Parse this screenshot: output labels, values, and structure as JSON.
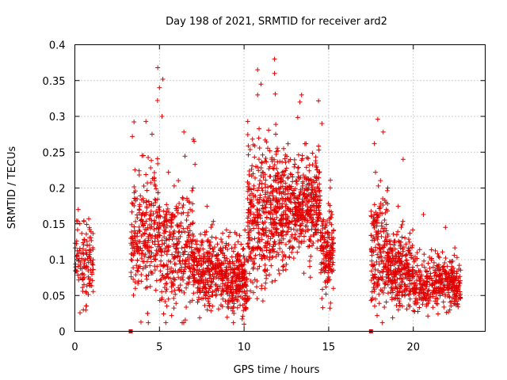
{
  "chart_data": {
    "type": "scatter",
    "title": "Day 198 of 2021, SRMTID for receiver ard2",
    "xlabel": "GPS time / hours",
    "ylabel": "SRMTID / TECUs",
    "xlim": [
      0,
      24.25
    ],
    "ylim": [
      0,
      0.4
    ],
    "xticks": [
      0,
      5,
      10,
      15,
      20
    ],
    "xtick_labels": [
      "0",
      "5",
      "10",
      "15",
      "20"
    ],
    "yticks": [
      0,
      0.05,
      0.1,
      0.15,
      0.2,
      0.25,
      0.3,
      0.35,
      0.4
    ],
    "ytick_labels": [
      "0",
      "0.05",
      "0.1",
      "0.15",
      "0.2",
      "0.25",
      "0.3",
      "0.35",
      "0.4"
    ],
    "grid": true,
    "marker": "+",
    "color": "#e00000",
    "zero_markers_x": [
      3.3,
      17.5
    ],
    "segments": [
      {
        "start": 0.0,
        "end": 1.1,
        "n": 120,
        "median": 0.1,
        "spread": 0.03
      },
      {
        "start": 3.3,
        "end": 5.0,
        "n": 260,
        "median": 0.14,
        "spread": 0.045
      },
      {
        "start": 5.0,
        "end": 7.0,
        "n": 300,
        "median": 0.11,
        "spread": 0.04
      },
      {
        "start": 7.0,
        "end": 9.0,
        "n": 320,
        "median": 0.085,
        "spread": 0.025
      },
      {
        "start": 9.0,
        "end": 10.2,
        "n": 220,
        "median": 0.07,
        "spread": 0.025
      },
      {
        "start": 10.2,
        "end": 11.5,
        "n": 260,
        "median": 0.15,
        "spread": 0.05
      },
      {
        "start": 11.5,
        "end": 13.0,
        "n": 300,
        "median": 0.17,
        "spread": 0.04
      },
      {
        "start": 13.0,
        "end": 14.5,
        "n": 300,
        "median": 0.18,
        "spread": 0.035
      },
      {
        "start": 14.5,
        "end": 15.3,
        "n": 150,
        "median": 0.11,
        "spread": 0.03
      },
      {
        "start": 17.5,
        "end": 18.5,
        "n": 180,
        "median": 0.11,
        "spread": 0.04
      },
      {
        "start": 18.5,
        "end": 20.0,
        "n": 260,
        "median": 0.085,
        "spread": 0.025
      },
      {
        "start": 20.0,
        "end": 22.8,
        "n": 380,
        "median": 0.065,
        "spread": 0.018
      }
    ],
    "notable_points": [
      {
        "x": 4.9,
        "y": 0.368
      },
      {
        "x": 5.0,
        "y": 0.34
      },
      {
        "x": 5.2,
        "y": 0.352
      },
      {
        "x": 5.15,
        "y": 0.3
      },
      {
        "x": 3.4,
        "y": 0.272
      },
      {
        "x": 4.2,
        "y": 0.293
      },
      {
        "x": 7.0,
        "y": 0.268
      },
      {
        "x": 7.05,
        "y": 0.265
      },
      {
        "x": 7.1,
        "y": 0.233
      },
      {
        "x": 11.8,
        "y": 0.38
      },
      {
        "x": 10.8,
        "y": 0.365
      },
      {
        "x": 11.8,
        "y": 0.36
      },
      {
        "x": 11.0,
        "y": 0.345
      },
      {
        "x": 10.8,
        "y": 0.33
      },
      {
        "x": 13.4,
        "y": 0.33
      },
      {
        "x": 13.3,
        "y": 0.32
      },
      {
        "x": 14.6,
        "y": 0.29
      },
      {
        "x": 17.9,
        "y": 0.296
      },
      {
        "x": 17.7,
        "y": 0.262
      },
      {
        "x": 19.4,
        "y": 0.24
      },
      {
        "x": 20.6,
        "y": 0.163
      },
      {
        "x": 10.0,
        "y": 0.01
      },
      {
        "x": 0.2,
        "y": 0.17
      },
      {
        "x": 0.5,
        "y": 0.03
      },
      {
        "x": 4.3,
        "y": 0.025
      },
      {
        "x": 9.4,
        "y": 0.025
      },
      {
        "x": 21.9,
        "y": 0.145
      }
    ]
  }
}
